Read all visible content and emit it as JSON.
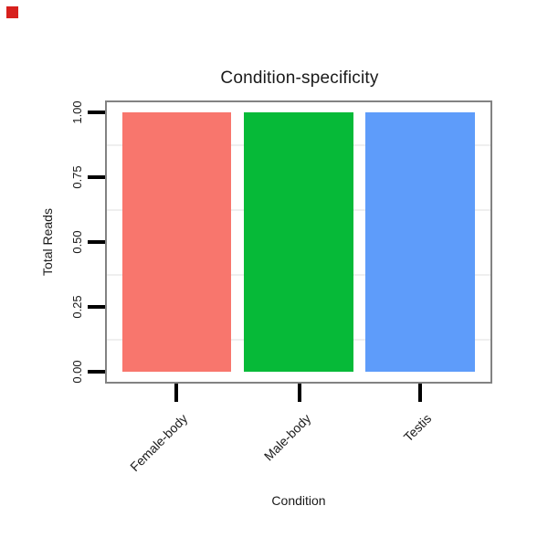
{
  "page": {
    "background": "#ffffff"
  },
  "marker": {
    "color": "#d7201d"
  },
  "chart_data": {
    "type": "bar",
    "title": "Condition-specificity",
    "xlabel": "Condition",
    "ylabel": "Total Reads",
    "categories": [
      "Female-body",
      "Male-body",
      "Testis"
    ],
    "values": [
      1.0,
      1.0,
      1.0
    ],
    "series_colors": [
      "#F8766D",
      "#06BA38",
      "#5E9CFA"
    ],
    "y_ticks": [
      {
        "label": "1.00",
        "value": 1.0
      },
      {
        "label": "0.75",
        "value": 0.75
      },
      {
        "label": "0.50",
        "value": 0.5
      },
      {
        "label": "0.25",
        "value": 0.25
      },
      {
        "label": "0.00",
        "value": 0.0
      }
    ],
    "minor_gridlines": [
      0.875,
      0.625,
      0.375,
      0.125
    ],
    "ylim": [
      0,
      1
    ],
    "legend": "none",
    "grid": "horizontal-minor-only",
    "panel_border_color": "#828282",
    "gridline_color": "#efefef",
    "tick_color": "#000000"
  }
}
